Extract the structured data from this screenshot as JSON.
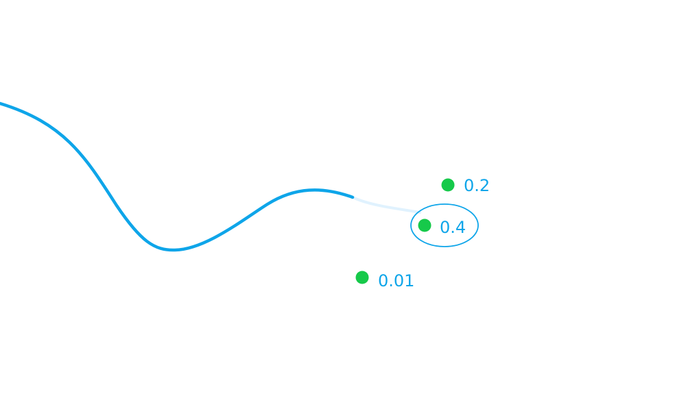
{
  "colors": {
    "background": "#ffffff",
    "path": "#0ea5e9",
    "path_ghost": "#e0f2fe",
    "target_dot": "#16c94a",
    "label": "#0ea5e9",
    "selection_ring": "#0ea5e9"
  },
  "options": [
    {
      "id": "top",
      "label": "0.2",
      "selected": false
    },
    {
      "id": "middle",
      "label": "0.4",
      "selected": true
    },
    {
      "id": "bottom",
      "label": "0.01",
      "selected": false
    }
  ],
  "selected_option": "0.4"
}
